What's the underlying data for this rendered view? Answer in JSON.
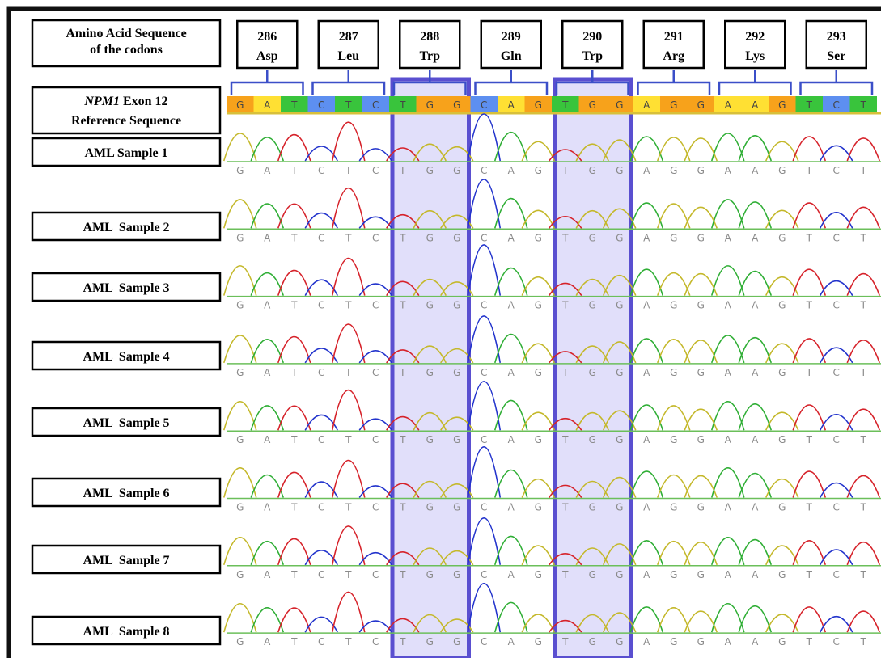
{
  "header": {
    "label_lines": [
      "Amino Acid Sequence",
      "of the codons"
    ]
  },
  "codons": [
    {
      "position": 286,
      "amino_acid": "Asp"
    },
    {
      "position": 287,
      "amino_acid": "Leu"
    },
    {
      "position": 288,
      "amino_acid": "Trp"
    },
    {
      "position": 289,
      "amino_acid": "Gln"
    },
    {
      "position": 290,
      "amino_acid": "Trp"
    },
    {
      "position": 291,
      "amino_acid": "Arg"
    },
    {
      "position": 292,
      "amino_acid": "Lys"
    },
    {
      "position": 293,
      "amino_acid": "Ser"
    }
  ],
  "reference": {
    "gene": "NPM1",
    "label_rest": " Exon 12",
    "label_line2": "Reference Sequence",
    "bases": [
      "G",
      "A",
      "T",
      "C",
      "T",
      "C",
      "T",
      "G",
      "G",
      "C",
      "A",
      "G",
      "T",
      "G",
      "G",
      "A",
      "G",
      "G",
      "A",
      "A",
      "G",
      "T",
      "C",
      "T"
    ]
  },
  "samples": [
    {
      "name": "AML Sample 1",
      "bases": [
        "G",
        "A",
        "T",
        "C",
        "T",
        "C",
        "T",
        "G",
        "G",
        "C",
        "A",
        "G",
        "T",
        "G",
        "G",
        "A",
        "G",
        "G",
        "A",
        "A",
        "G",
        "T",
        "C",
        "T"
      ]
    },
    {
      "name": "AML  Sample 2",
      "bases": [
        "G",
        "A",
        "T",
        "C",
        "T",
        "C",
        "T",
        "G",
        "G",
        "C",
        "A",
        "G",
        "T",
        "G",
        "G",
        "A",
        "G",
        "G",
        "A",
        "A",
        "G",
        "T",
        "C",
        "T"
      ]
    },
    {
      "name": "AML  Sample 3",
      "bases": [
        "G",
        "A",
        "T",
        "C",
        "T",
        "C",
        "T",
        "G",
        "G",
        "C",
        "A",
        "G",
        "T",
        "G",
        "G",
        "A",
        "G",
        "G",
        "A",
        "A",
        "G",
        "T",
        "C",
        "T"
      ]
    },
    {
      "name": "AML  Sample 4",
      "bases": [
        "G",
        "A",
        "T",
        "C",
        "T",
        "C",
        "T",
        "G",
        "G",
        "C",
        "A",
        "G",
        "T",
        "G",
        "G",
        "A",
        "G",
        "G",
        "A",
        "A",
        "G",
        "T",
        "C",
        "T"
      ]
    },
    {
      "name": "AML  Sample 5",
      "bases": [
        "G",
        "A",
        "T",
        "C",
        "T",
        "C",
        "T",
        "G",
        "G",
        "C",
        "A",
        "G",
        "T",
        "G",
        "G",
        "A",
        "G",
        "G",
        "A",
        "A",
        "G",
        "T",
        "C",
        "T"
      ]
    },
    {
      "name": "AML  Sample 6",
      "bases": [
        "G",
        "A",
        "T",
        "C",
        "T",
        "C",
        "T",
        "G",
        "G",
        "C",
        "A",
        "G",
        "T",
        "G",
        "G",
        "A",
        "G",
        "G",
        "A",
        "A",
        "G",
        "T",
        "C",
        "T"
      ]
    },
    {
      "name": "AML  Sample 7",
      "bases": [
        "G",
        "A",
        "T",
        "C",
        "T",
        "C",
        "T",
        "G",
        "G",
        "C",
        "A",
        "G",
        "T",
        "G",
        "G",
        "A",
        "G",
        "G",
        "A",
        "A",
        "G",
        "T",
        "C",
        "T"
      ]
    },
    {
      "name": "AML  Sample 8",
      "bases": [
        "G",
        "A",
        "T",
        "C",
        "T",
        "C",
        "T",
        "G",
        "G",
        "C",
        "A",
        "G",
        "T",
        "G",
        "G",
        "A",
        "G",
        "G",
        "A",
        "A",
        "G",
        "T",
        "C",
        "T"
      ]
    }
  ]
}
